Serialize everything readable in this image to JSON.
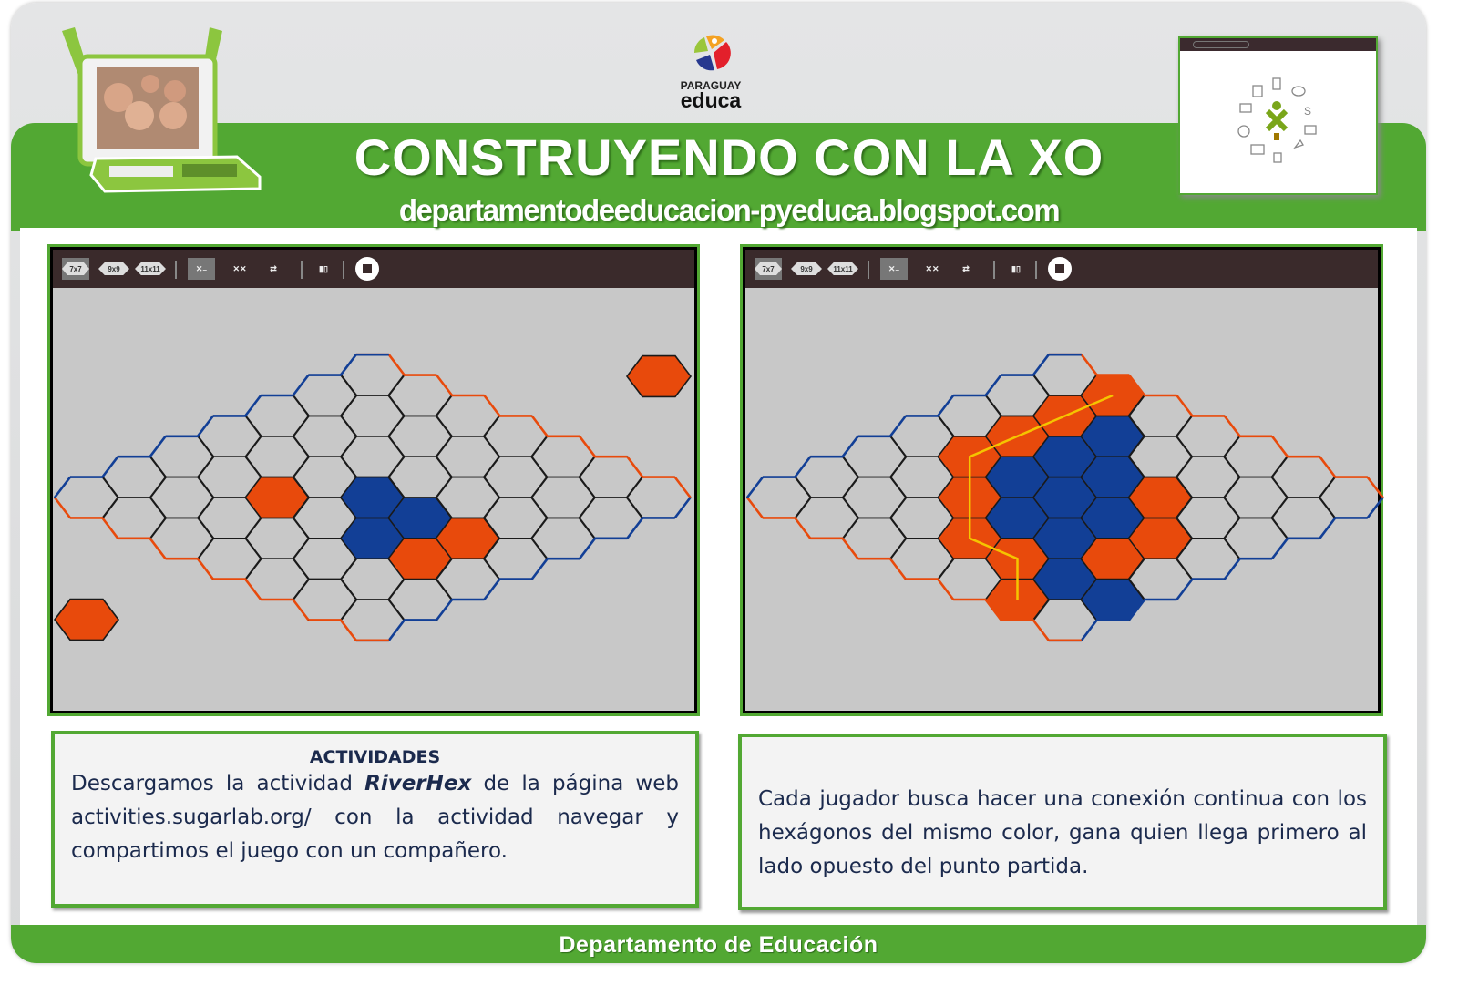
{
  "header": {
    "title": "CONSTRUYENDO CON LA XO",
    "url": "departamentodeeducacion-pyeduca.blogspot.com",
    "logo": {
      "line1": "PARAGUAY",
      "line2": "educa"
    }
  },
  "toolbar": {
    "items": [
      {
        "icon": "board-7x7-icon",
        "label": "7x7",
        "selected": true
      },
      {
        "icon": "board-9x9-icon",
        "label": "9x9",
        "selected": false
      },
      {
        "icon": "board-11x11-icon",
        "label": "11x11",
        "selected": false
      },
      {
        "icon": "single-player-icon",
        "label": "",
        "selected": true
      },
      {
        "icon": "two-players-icon",
        "label": "",
        "selected": false
      },
      {
        "icon": "swap-icon",
        "label": "",
        "selected": false
      },
      {
        "icon": "share-icon",
        "label": "",
        "selected": false
      },
      {
        "icon": "stop-icon",
        "label": "",
        "selected": false
      }
    ]
  },
  "colors": {
    "orange": "#e84a0c",
    "blue": "#123f96",
    "board": "#c8c8c8",
    "green": "#52a833",
    "path": "#f5c400"
  },
  "boards": [
    {
      "size": 7,
      "orange": [
        [
          2,
          2
        ],
        [
          3,
          5
        ],
        [
          2,
          5
        ]
      ],
      "blue": [
        [
          3,
          3
        ],
        [
          3,
          4
        ],
        [
          2,
          4
        ]
      ],
      "turn_indicators": [
        "top-right",
        "bottom-left"
      ],
      "path": []
    },
    {
      "size": 7,
      "orange": [
        [
          6,
          1
        ],
        [
          5,
          1
        ],
        [
          4,
          1
        ],
        [
          3,
          1
        ],
        [
          2,
          2
        ],
        [
          1,
          3
        ],
        [
          1,
          4
        ],
        [
          0,
          5
        ],
        [
          4,
          4
        ],
        [
          3,
          5
        ],
        [
          2,
          5
        ]
      ],
      "blue": [
        [
          5,
          2
        ],
        [
          4,
          2
        ],
        [
          3,
          2
        ],
        [
          4,
          3
        ],
        [
          3,
          3
        ],
        [
          2,
          3
        ],
        [
          3,
          4
        ],
        [
          2,
          4
        ],
        [
          1,
          5
        ],
        [
          1,
          6
        ]
      ],
      "turn_indicators": [],
      "path": [
        [
          6,
          1
        ],
        [
          3,
          1
        ],
        [
          1,
          3
        ],
        [
          1,
          4
        ],
        [
          0,
          5
        ]
      ]
    }
  ],
  "panels": {
    "left": {
      "heading": "ACTIVIDADES",
      "text_before": "Descargamos la actividad ",
      "emphasis": "RiverHex",
      "text_after": " de la página web activities.sugarlab.org/ con la actividad navegar y compartimos el juego con un compañero."
    },
    "right": {
      "text": "Cada jugador busca hacer una conexión continua con los hexágonos del mismo color, gana quien llega primero al lado opuesto del punto partida."
    }
  },
  "footer": {
    "text": "Departamento de Educación"
  }
}
